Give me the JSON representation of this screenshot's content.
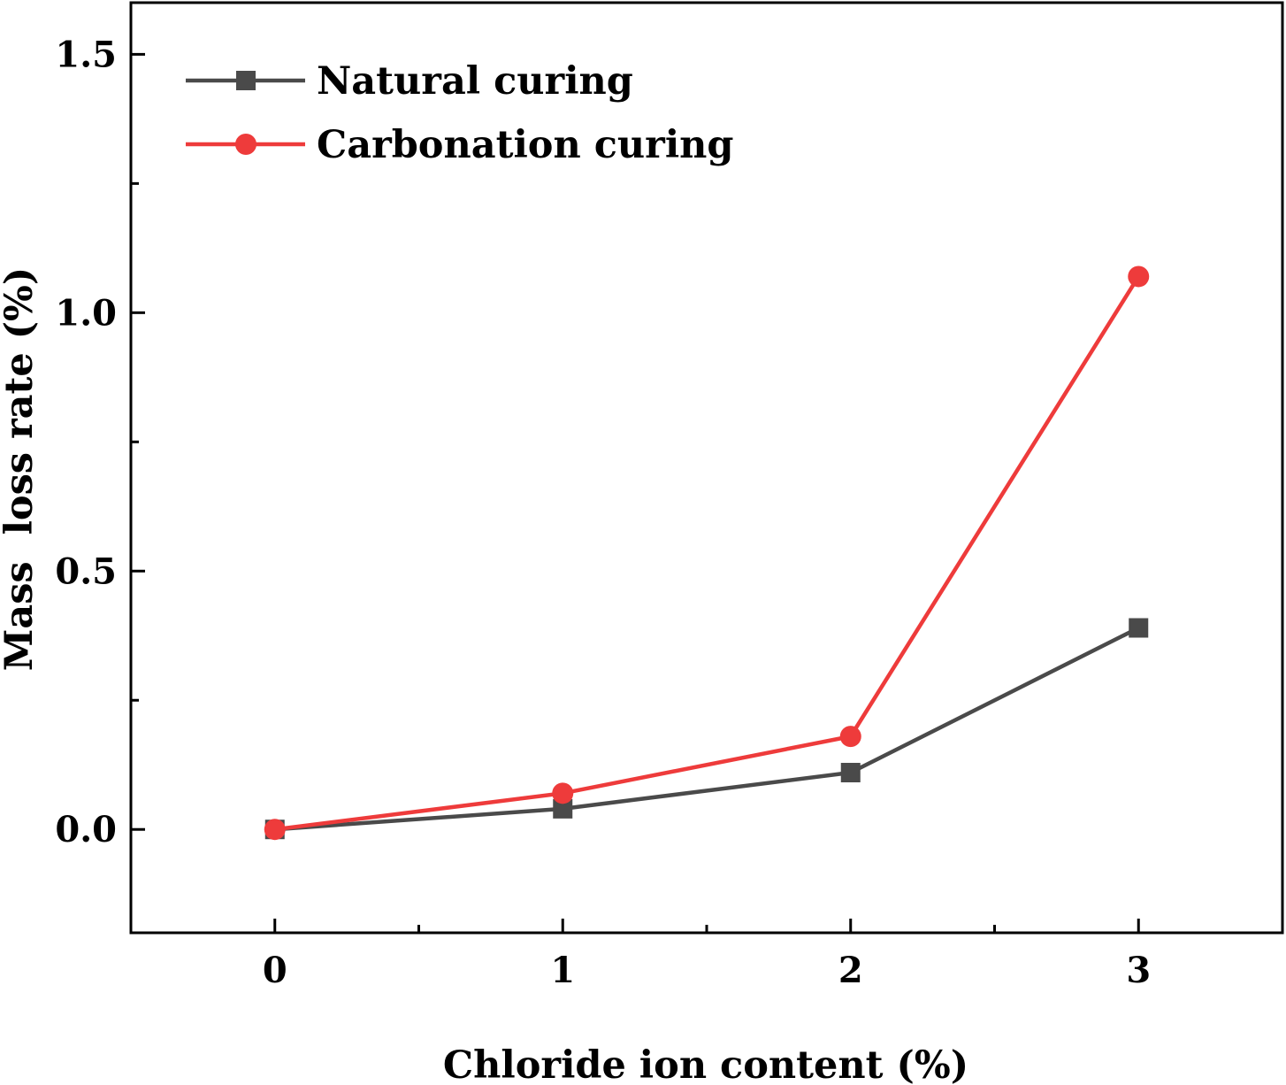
{
  "chart_data": {
    "type": "line",
    "x": [
      0,
      1,
      2,
      3
    ],
    "xlim": [
      -0.5,
      3.5
    ],
    "ylim": [
      -0.2,
      1.6
    ],
    "x_ticks": [
      0,
      1,
      2,
      3
    ],
    "x_tick_labels": [
      "0",
      "1",
      "2",
      "3"
    ],
    "y_ticks": [
      0.0,
      0.5,
      1.0,
      1.5
    ],
    "y_tick_labels": [
      "0.0",
      "0.5",
      "1.0",
      "1.5"
    ],
    "x_minor_ticks": [
      0.5,
      1.5,
      2.5
    ],
    "y_minor_ticks": [
      0.25,
      0.75,
      1.25
    ],
    "xlabel": "Chloride ion content (%)",
    "ylabel": "Mass  loss rate (%)",
    "grid": false,
    "legend_position": "top-left",
    "series": [
      {
        "name": "Natural curing",
        "values": [
          0.0,
          0.04,
          0.11,
          0.39
        ],
        "color": "#4a4a4a",
        "marker": "square"
      },
      {
        "name": "Carbonation curing",
        "values": [
          0.0,
          0.07,
          0.18,
          1.07
        ],
        "color": "#ee3b3b",
        "marker": "circle"
      }
    ]
  }
}
